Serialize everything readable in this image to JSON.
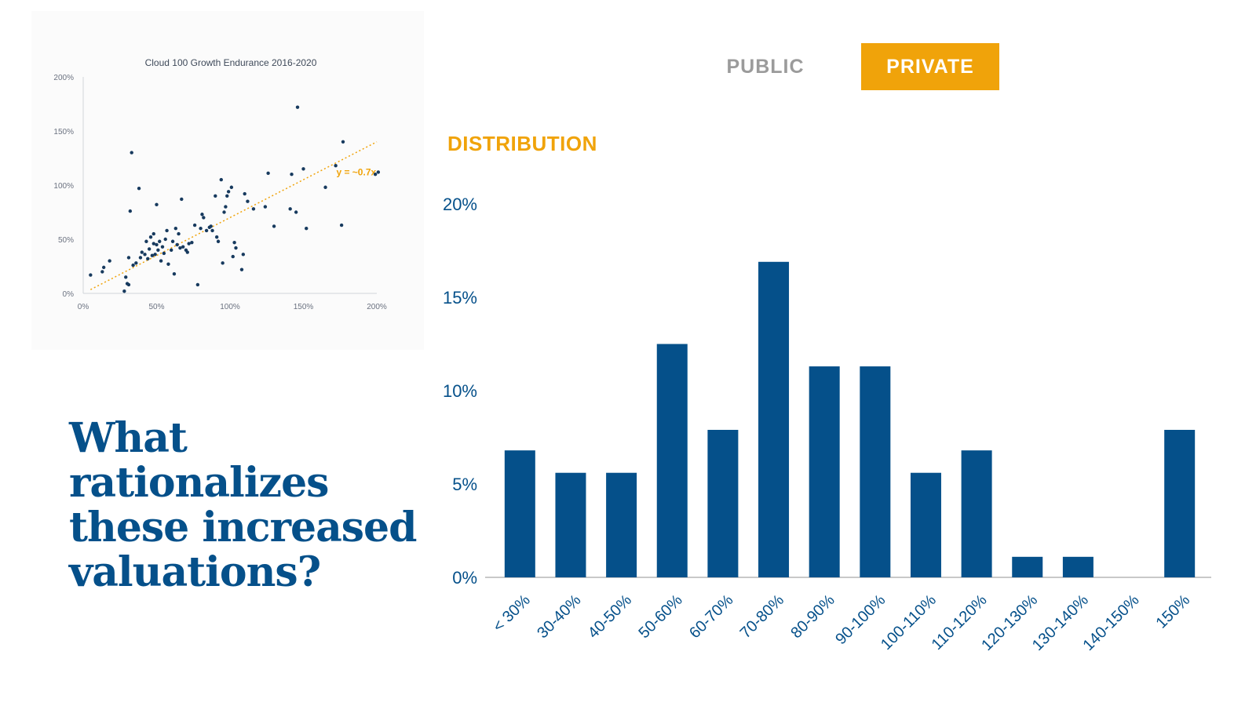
{
  "colors": {
    "navy": "#05508a",
    "accent": "#f0a30a",
    "muted_gray": "#9b9b9b",
    "scatter_dot": "#173a5e",
    "scatter_axis_text": "#6b7280"
  },
  "tabs": {
    "public_label": "PUBLIC",
    "private_label": "PRIVATE",
    "active": "private"
  },
  "distribution_label": "DISTRIBUTION",
  "headline": "What rationalizes these increased valuations?",
  "chart_data": [
    {
      "type": "scatter",
      "title": "Cloud 100 Growth Endurance 2016-2020",
      "xlabel": "",
      "ylabel": "",
      "xlim": [
        0,
        200
      ],
      "ylim": [
        0,
        200
      ],
      "x_ticks": [
        "0%",
        "50%",
        "100%",
        "150%",
        "200%"
      ],
      "y_ticks": [
        "0%",
        "50%",
        "100%",
        "150%",
        "200%"
      ],
      "trendline": {
        "label": "y = ~0.7x",
        "slope": 0.7,
        "style": "dotted"
      },
      "points": [
        [
          5,
          17
        ],
        [
          13,
          20
        ],
        [
          14,
          24
        ],
        [
          18,
          30
        ],
        [
          28,
          2
        ],
        [
          29,
          15
        ],
        [
          30,
          9
        ],
        [
          31,
          8
        ],
        [
          31,
          33
        ],
        [
          32,
          76
        ],
        [
          33,
          130
        ],
        [
          34,
          26
        ],
        [
          36,
          28
        ],
        [
          38,
          97
        ],
        [
          39,
          33
        ],
        [
          40,
          38
        ],
        [
          42,
          36
        ],
        [
          43,
          48
        ],
        [
          44,
          32
        ],
        [
          45,
          41
        ],
        [
          46,
          52
        ],
        [
          47,
          35
        ],
        [
          48,
          55
        ],
        [
          48,
          46
        ],
        [
          49,
          36
        ],
        [
          50,
          45
        ],
        [
          50,
          82
        ],
        [
          51,
          40
        ],
        [
          52,
          48
        ],
        [
          53,
          30
        ],
        [
          54,
          43
        ],
        [
          55,
          37
        ],
        [
          56,
          50
        ],
        [
          57,
          58
        ],
        [
          58,
          27
        ],
        [
          60,
          40
        ],
        [
          61,
          48
        ],
        [
          62,
          18
        ],
        [
          63,
          60
        ],
        [
          64,
          45
        ],
        [
          65,
          55
        ],
        [
          66,
          42
        ],
        [
          67,
          87
        ],
        [
          68,
          43
        ],
        [
          70,
          40
        ],
        [
          71,
          38
        ],
        [
          72,
          46
        ],
        [
          74,
          47
        ],
        [
          76,
          63
        ],
        [
          78,
          8
        ],
        [
          80,
          60
        ],
        [
          81,
          73
        ],
        [
          82,
          70
        ],
        [
          84,
          58
        ],
        [
          86,
          61
        ],
        [
          87,
          62
        ],
        [
          88,
          58
        ],
        [
          90,
          90
        ],
        [
          91,
          52
        ],
        [
          92,
          48
        ],
        [
          94,
          105
        ],
        [
          95,
          28
        ],
        [
          96,
          75
        ],
        [
          97,
          80
        ],
        [
          98,
          90
        ],
        [
          99,
          94
        ],
        [
          101,
          98
        ],
        [
          102,
          34
        ],
        [
          103,
          47
        ],
        [
          104,
          42
        ],
        [
          108,
          22
        ],
        [
          109,
          36
        ],
        [
          110,
          92
        ],
        [
          112,
          85
        ],
        [
          116,
          78
        ],
        [
          124,
          80
        ],
        [
          126,
          111
        ],
        [
          130,
          62
        ],
        [
          141,
          78
        ],
        [
          142,
          110
        ],
        [
          145,
          75
        ],
        [
          146,
          172
        ],
        [
          150,
          115
        ],
        [
          152,
          60
        ],
        [
          165,
          98
        ],
        [
          172,
          118
        ],
        [
          176,
          63
        ],
        [
          177,
          140
        ],
        [
          199,
          110
        ],
        [
          201,
          112
        ]
      ]
    },
    {
      "type": "bar",
      "title": "DISTRIBUTION",
      "xlabel": "",
      "ylabel": "",
      "ylim": [
        0,
        20
      ],
      "y_ticks": [
        "0%",
        "5%",
        "10%",
        "15%",
        "20%"
      ],
      "y_tick_values": [
        0,
        5,
        10,
        15,
        20
      ],
      "categories": [
        "< 30%",
        "30-40%",
        "40-50%",
        "50-60%",
        "60-70%",
        "70-80%",
        "80-90%",
        "90-100%",
        "100-110%",
        "110-120%",
        "120-130%",
        "130-140%",
        "140-150%",
        "150%"
      ],
      "values": [
        6.8,
        5.6,
        5.6,
        12.5,
        7.9,
        16.9,
        11.3,
        11.3,
        5.6,
        6.8,
        1.1,
        1.1,
        0,
        7.9
      ]
    }
  ]
}
